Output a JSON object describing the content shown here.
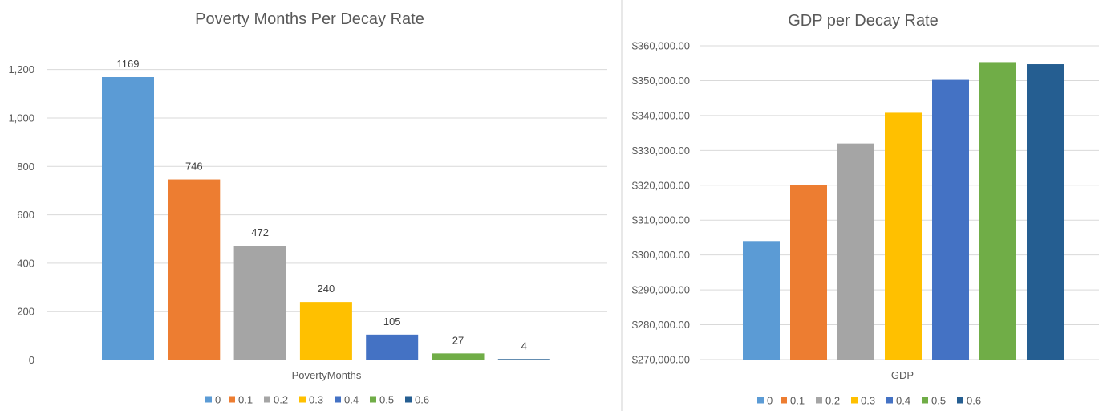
{
  "chart_data": [
    {
      "type": "bar",
      "title": "Poverty Months Per Decay Rate",
      "category": "PovertyMonths",
      "series": [
        {
          "name": "0",
          "value": 1169,
          "color": "#5b9bd5"
        },
        {
          "name": "0.1",
          "value": 746,
          "color": "#ed7d31"
        },
        {
          "name": "0.2",
          "value": 472,
          "color": "#a5a5a5"
        },
        {
          "name": "0.3",
          "value": 240,
          "color": "#ffc000"
        },
        {
          "name": "0.4",
          "value": 105,
          "color": "#4472c4"
        },
        {
          "name": "0.5",
          "value": 27,
          "color": "#70ad47"
        },
        {
          "name": "0.6",
          "value": 4,
          "color": "#255e91"
        }
      ],
      "data_labels": true,
      "ylim": [
        0,
        1300
      ],
      "yticks": [
        0,
        200,
        400,
        600,
        800,
        1000,
        1200
      ],
      "ytick_labels": [
        "0",
        "200",
        "400",
        "600",
        "800",
        "1,000",
        "1,200"
      ],
      "grid": true,
      "legend": "bottom"
    },
    {
      "type": "bar",
      "title": "GDP per Decay Rate",
      "category": "GDP",
      "series": [
        {
          "name": "0",
          "value": 304000,
          "color": "#5b9bd5"
        },
        {
          "name": "0.1",
          "value": 320000,
          "color": "#ed7d31"
        },
        {
          "name": "0.2",
          "value": 332000,
          "color": "#a5a5a5"
        },
        {
          "name": "0.3",
          "value": 340800,
          "color": "#ffc000"
        },
        {
          "name": "0.4",
          "value": 350200,
          "color": "#4472c4"
        },
        {
          "name": "0.5",
          "value": 355300,
          "color": "#70ad47"
        },
        {
          "name": "0.6",
          "value": 354700,
          "color": "#255e91"
        }
      ],
      "data_labels": false,
      "ylim": [
        270000,
        360000
      ],
      "yticks": [
        270000,
        280000,
        290000,
        300000,
        310000,
        320000,
        330000,
        340000,
        350000,
        360000
      ],
      "ytick_labels": [
        "$270,000.00",
        "$280,000.00",
        "$290,000.00",
        "$300,000.00",
        "$310,000.00",
        "$320,000.00",
        "$330,000.00",
        "$340,000.00",
        "$350,000.00",
        "$360,000.00"
      ],
      "grid": true,
      "legend": "bottom"
    }
  ]
}
